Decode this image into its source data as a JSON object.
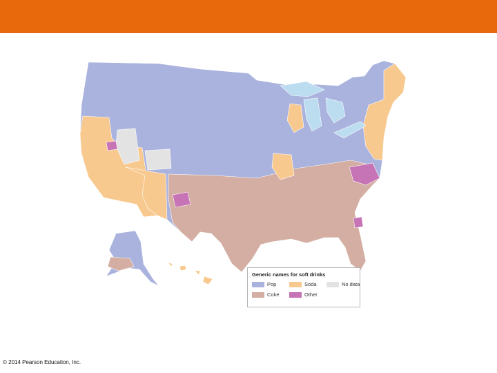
{
  "header": {
    "bar_color": "#e8690b"
  },
  "map": {
    "colors": {
      "pop": "#aab3de",
      "soda": "#f8c98f",
      "coke": "#d4aea2",
      "other": "#c774b6",
      "no_data": "#e3e3e3",
      "water": "#bcdcef",
      "border": "#ffffff"
    }
  },
  "legend": {
    "title": "Generic names for soft drinks",
    "items": [
      {
        "label": "Pop",
        "color": "#aab3de"
      },
      {
        "label": "Soda",
        "color": "#f8c98f"
      },
      {
        "label": "No data",
        "color": "#e3e3e3"
      },
      {
        "label": "Coke",
        "color": "#d4aea2"
      },
      {
        "label": "Other",
        "color": "#c774b6"
      }
    ]
  },
  "footer": {
    "copyright": "© 2014 Pearson Education, Inc."
  }
}
